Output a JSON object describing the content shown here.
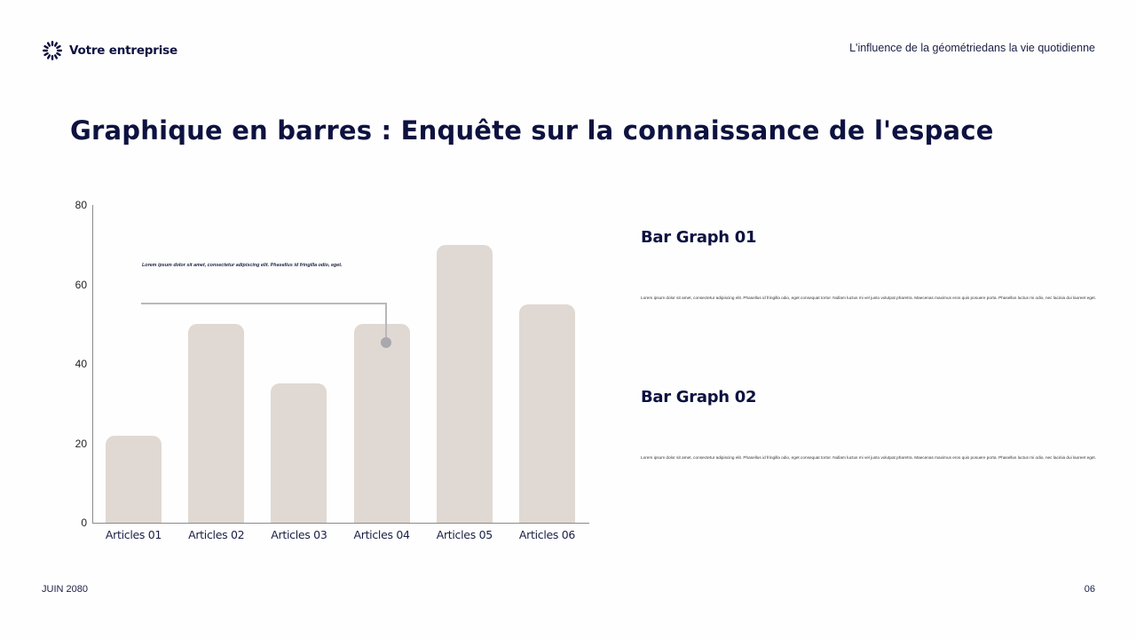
{
  "header": {
    "brand_name": "Votre entreprise",
    "brand_icon": "sunburst-logo-icon",
    "subtitle": "L'influence de la géométriedans la vie quotidienne"
  },
  "page_title": "Graphique en barres : Enquête sur la connaissance de l'espace",
  "chart": {
    "callout_text": "Lorem ipsum dolor sit amet, consectetur adipiscing elit. Phasellus id fringilla odio, eget.",
    "y_ticks": [
      "80",
      "60",
      "40",
      "20",
      "0"
    ],
    "x_labels": [
      "Articles 01",
      "Articles 02",
      "Articles 03",
      "Articles 04",
      "Articles 05",
      "Articles 06"
    ]
  },
  "chart_data": {
    "type": "bar",
    "title": "Graphique en barres : Enquête sur la connaissance de l'espace",
    "categories": [
      "Articles 01",
      "Articles 02",
      "Articles 03",
      "Articles 04",
      "Articles 05",
      "Articles 06"
    ],
    "values": [
      22,
      50,
      35,
      50,
      70,
      55
    ],
    "xlabel": "",
    "ylabel": "",
    "ylim": [
      0,
      80
    ],
    "yticks": [
      0,
      20,
      40,
      60,
      80
    ],
    "grid": false,
    "legend": null,
    "bar_color": "#e0d8d2",
    "annotations": [
      {
        "text": "Lorem ipsum dolor sit amet, consectetur adipiscing elit. Phasellus id fringilla odio, eget.",
        "target_category": "Articles 04",
        "target_value": 45
      }
    ]
  },
  "sections": [
    {
      "title": "Bar Graph 01",
      "body": "Lorem ipsum dolor sit amet, consectetur adipiscing elit. Phasellus id fringilla odio, eget consequat tortor. Nullam luctus mi vel justo volutpat pharetra. Maecenas maximus eros quis posuere porta. Phasellus luctus mi odio, nec lacinia dui laoreet eget."
    },
    {
      "title": "Bar Graph 02",
      "body": "Lorem ipsum dolor sit amet, consectetur adipiscing elit. Phasellus id fringilla odio, eget consequat tortor. Nullam luctus mi vel justo volutpat pharetra. Maecenas maximus eros quis posuere porta. Phasellus luctus mi odio, nec lacinia dui laoreet eget."
    }
  ],
  "footer": {
    "date": "JUIN 2080",
    "page_number": "06"
  },
  "colors": {
    "primary": "#0d1240",
    "bar": "#e0d8d2",
    "axis": "#8a8a8a",
    "callout": "#b8b8bc"
  }
}
